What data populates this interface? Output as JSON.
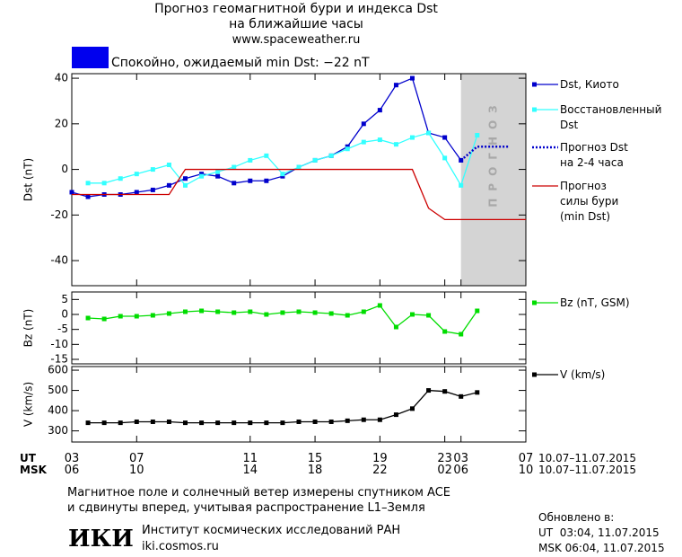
{
  "header": {
    "title": "Прогноз геомагнитной бури и индекса Dst",
    "subtitle": "на ближайшие часы",
    "url": "www.spaceweather.ru",
    "status": {
      "color": "#0000ee",
      "text": "Спокойно, ожидаемый min Dst: −22 nT"
    }
  },
  "chart_data": [
    {
      "type": "line",
      "ylabel": "Dst (nT)",
      "xlim": [
        0,
        28
      ],
      "ylim": [
        -51,
        42
      ],
      "yticks": [
        40,
        20,
        0,
        -20,
        -40
      ],
      "forecast": {
        "label": "ПРОГНОЗ",
        "xlim": [
          24,
          28
        ],
        "color": "#d4d4d4"
      },
      "series": [
        {
          "name": "Dst, Киото",
          "color": "#0000cc",
          "marker": "square",
          "x": [
            0,
            1,
            2,
            3,
            4,
            5,
            6,
            7,
            8,
            9,
            10,
            11,
            12,
            13,
            14,
            15,
            16,
            17,
            18,
            19,
            20,
            21,
            22,
            23,
            24
          ],
          "values": [
            -10,
            -12,
            -11,
            -11,
            -10,
            -9,
            -7,
            -4,
            -2,
            -3,
            -6,
            -5,
            -5,
            -3,
            1,
            4,
            6,
            10,
            20,
            26,
            37,
            40,
            16,
            14,
            4
          ]
        },
        {
          "name": "Восстановленный\nDst",
          "color": "#33ffff",
          "marker": "square",
          "x": [
            1,
            2,
            3,
            4,
            5,
            6,
            7,
            8,
            9,
            10,
            11,
            12,
            13,
            14,
            15,
            16,
            17,
            18,
            19,
            20,
            21,
            22,
            23,
            24,
            25
          ],
          "values": [
            -6,
            -6,
            -4,
            -2,
            0,
            2,
            -7,
            -3,
            -1,
            1,
            4,
            6,
            -2,
            1,
            4,
            6,
            9,
            12,
            13,
            11,
            14,
            16,
            5,
            -7,
            15
          ]
        },
        {
          "name": "Прогноз Dst\nна 2-4 часа",
          "color": "#0000cc",
          "dash": "dotted",
          "x": [
            24,
            25,
            26,
            27
          ],
          "values": [
            4,
            10,
            10,
            10
          ]
        },
        {
          "name": "Прогноз\nсилы бури\n(min Dst)",
          "color": "#cc0000",
          "x": [
            0,
            6,
            7,
            21,
            22,
            23,
            28
          ],
          "values": [
            -11,
            -11,
            0,
            0,
            -17,
            -22,
            -22
          ]
        }
      ]
    },
    {
      "type": "line",
      "ylabel": "Bz (nT)",
      "xlim": [
        0,
        28
      ],
      "ylim": [
        -16.5,
        7.5
      ],
      "yticks": [
        5,
        0,
        -5,
        -10,
        -15
      ],
      "series": [
        {
          "name": "Bz (nT, GSM)",
          "color": "#00dd00",
          "marker": "square",
          "x": [
            1,
            2,
            3,
            4,
            5,
            6,
            7,
            8,
            9,
            10,
            11,
            12,
            13,
            14,
            15,
            16,
            17,
            18,
            19,
            20,
            21,
            22,
            23,
            24,
            25
          ],
          "values": [
            -1.2,
            -1.5,
            -0.6,
            -0.6,
            -0.3,
            0.3,
            0.9,
            1.2,
            0.9,
            0.6,
            0.9,
            0,
            0.6,
            0.9,
            0.6,
            0.3,
            -0.3,
            0.9,
            3,
            -4.2,
            0,
            -0.3,
            -5.7,
            -6.6,
            1.2
          ]
        }
      ]
    },
    {
      "type": "line",
      "ylabel": "V (km/s)",
      "xlim": [
        0,
        28
      ],
      "ylim": [
        245,
        618
      ],
      "yticks": [
        600,
        500,
        400,
        300
      ],
      "xtitle": "UT",
      "xtitle2": "MSK",
      "xrange_label": "10.07–11.07.2015",
      "xticks": [
        {
          "value": 0,
          "label": "03"
        },
        {
          "value": 4,
          "label": "07"
        },
        11,
        15,
        19,
        23,
        {
          "value": 24,
          "label": "03"
        },
        {
          "value": 28,
          "label": "07"
        }
      ],
      "xticks_msk": [
        "06",
        "10",
        "14",
        "18",
        "22",
        "02",
        "06",
        "10"
      ],
      "series": [
        {
          "name": "V (km/s)",
          "color": "#000000",
          "marker": "square",
          "x": [
            1,
            2,
            3,
            4,
            5,
            6,
            7,
            8,
            9,
            10,
            11,
            12,
            13,
            14,
            15,
            16,
            17,
            18,
            19,
            20,
            21,
            22,
            23,
            24,
            25
          ],
          "values": [
            340,
            340,
            340,
            345,
            345,
            345,
            340,
            340,
            340,
            340,
            340,
            340,
            340,
            345,
            345,
            345,
            350,
            355,
            355,
            380,
            410,
            500,
            495,
            470,
            490
          ]
        }
      ]
    }
  ],
  "footer": {
    "note1": "Магнитное поле и солнечный ветер измерены спутником ACE",
    "note2": "и сдвинуты вперед, учитывая распространение L1–Земля",
    "logo": "ИКИ",
    "institute": "Институт космических исследований РАН",
    "site": "iki.cosmos.ru",
    "updated": "Обновлено в:",
    "ut": "UT  03:04, 11.07.2015",
    "msk": "MSK 06:04, 11.07.2015"
  }
}
